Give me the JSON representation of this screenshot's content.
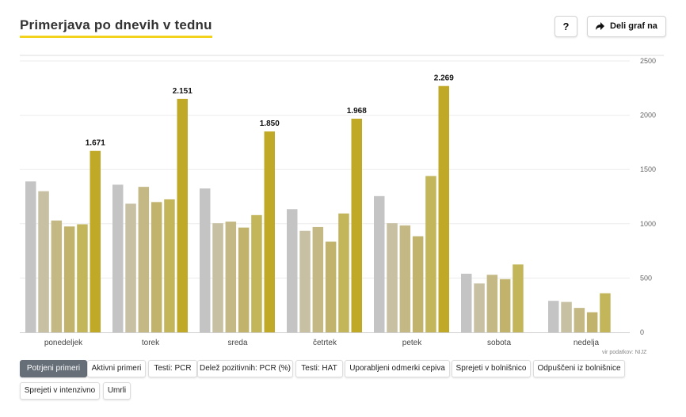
{
  "title": "Primerjava po dnevih v tednu",
  "help_label": "?",
  "share_label": "Deli graf na",
  "source": "vir podatkov: NIJZ",
  "tabs": [
    "Potrjeni primeri",
    "Aktivni primeri",
    "Testi: PCR",
    "Delež pozitivnih: PCR (%)",
    "Testi: HAT",
    "Uporabljeni odmerki cepiva",
    "Sprejeti v bolnišnico",
    "Odpuščeni iz bolnišnice",
    "Sprejeti v intenzivno",
    "Umrli"
  ],
  "active_tab": 0,
  "colors": [
    "#c4c4c4",
    "#c8c0a3",
    "#c4b884",
    "#c1b36c",
    "#c2b55a",
    "#c0a926"
  ],
  "chart_data": {
    "type": "bar",
    "categories": [
      "ponedeljek",
      "torek",
      "sreda",
      "četrtek",
      "petek",
      "sobota",
      "nedelja"
    ],
    "ylim": [
      0,
      2500
    ],
    "yticks": [
      0,
      500,
      1000,
      1500,
      2000,
      2500
    ],
    "ytick_labels": [
      "0",
      "500",
      "1000",
      "1500",
      "2000",
      "2500"
    ],
    "groups": [
      {
        "values": [
          1390,
          1300,
          1030,
          975,
          995,
          1671
        ],
        "label": "1.671"
      },
      {
        "values": [
          1360,
          1185,
          1340,
          1200,
          1225,
          2151
        ],
        "label": "2.151"
      },
      {
        "values": [
          1325,
          1005,
          1020,
          965,
          1080,
          1850
        ],
        "label": "1.850"
      },
      {
        "values": [
          1135,
          935,
          970,
          835,
          1095,
          1968
        ],
        "label": "1.968"
      },
      {
        "values": [
          1255,
          1005,
          985,
          885,
          1440,
          2269
        ],
        "label": "2.269"
      },
      {
        "values": [
          540,
          450,
          530,
          490,
          625
        ],
        "label": ""
      },
      {
        "values": [
          290,
          280,
          225,
          185,
          360
        ],
        "label": ""
      }
    ]
  }
}
